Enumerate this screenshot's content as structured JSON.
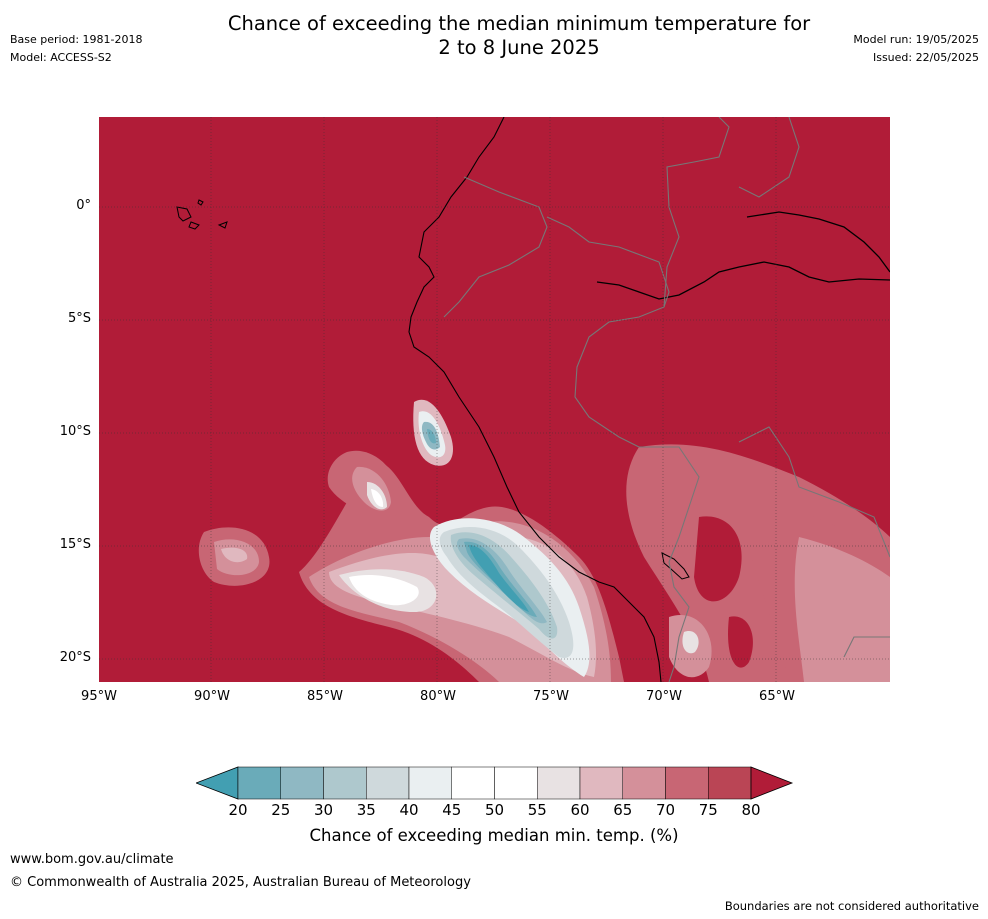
{
  "header": {
    "title_line1": "Chance of exceeding the median minimum temperature for",
    "title_line2": "2 to 8 June 2025",
    "base_period": "Base period: 1981-2018",
    "model": "Model: ACCESS-S2",
    "model_run": "Model run: 19/05/2025",
    "issued": "Issued: 22/05/2025"
  },
  "map": {
    "latitude_labels": [
      "0°",
      "5°S",
      "10°S",
      "15°S",
      "20°S"
    ],
    "longitude_labels": [
      "95°W",
      "90°W",
      "85°W",
      "80°W",
      "75°W",
      "70°W",
      "65°W"
    ],
    "background_category_color": "#b11c38"
  },
  "colorbar": {
    "ticks": [
      "20",
      "25",
      "30",
      "35",
      "40",
      "45",
      "50",
      "55",
      "60",
      "65",
      "70",
      "75",
      "80"
    ],
    "colors": [
      "#429fb2",
      "#6aabb9",
      "#8fb8c3",
      "#aec8cd",
      "#cfd9dc",
      "#eaeff1",
      "#ffffff",
      "#ffffff",
      "#e8e2e3",
      "#e0b8bf",
      "#d4909a",
      "#c86674",
      "#ba4555",
      "#b11c38"
    ],
    "label": "Chance of exceeding median min. temp. (%)"
  },
  "footer": {
    "website": "www.bom.gov.au/climate",
    "copyright": "© Commonwealth of Australia 2025, Australian Bureau of Meteorology",
    "disclaimer": "Boundaries are not considered authoritative"
  }
}
